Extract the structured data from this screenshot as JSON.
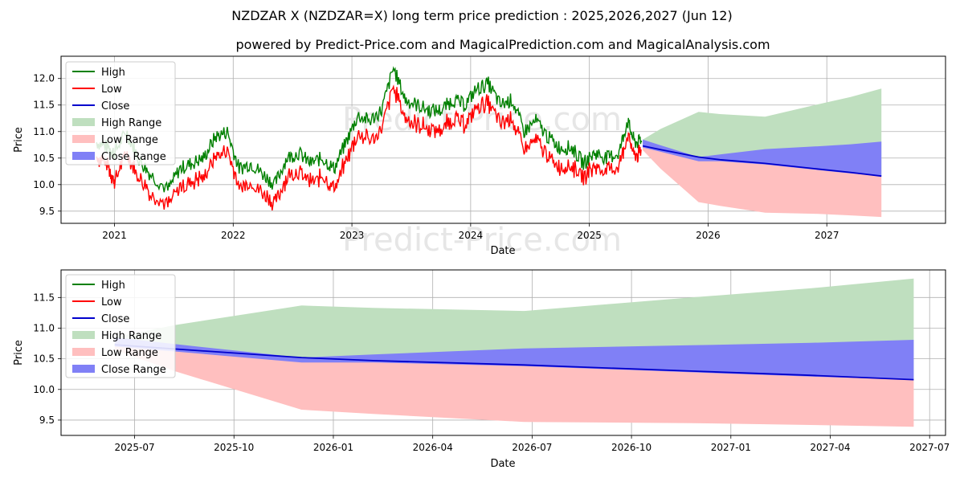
{
  "title": "NZDZAR X (NZDZAR=X) long term price prediction : 2025,2026,2027 (Jun 12)",
  "subtitle": "powered by Predict-Price.com and MagicalPrediction.com and MagicalAnalysis.com",
  "watermark": "Predict-Price.com",
  "colors": {
    "high": "#008000",
    "low": "#ff0000",
    "close": "#0000cc",
    "high_range": "#bfdfbf",
    "low_range": "#ffbfbf",
    "close_range": "#8080f6"
  },
  "legend": [
    "High",
    "Low",
    "Close",
    "High Range",
    "Low Range",
    "Close Range"
  ],
  "chart_data": [
    {
      "type": "line",
      "xlabel": "Date",
      "ylabel": "Price",
      "xlim": [
        2020.55,
        2028.0
      ],
      "ylim": [
        9.27,
        12.42
      ],
      "xticks": [
        2021,
        2022,
        2023,
        2024,
        2025,
        2026,
        2027
      ],
      "xtick_labels": [
        "2021",
        "2022",
        "2023",
        "2024",
        "2025",
        "2026",
        "2027"
      ],
      "yticks": [
        9.5,
        10.0,
        10.5,
        11.0,
        11.5,
        12.0
      ],
      "ytick_labels": [
        "9.5",
        "10.0",
        "10.5",
        "11.0",
        "11.5",
        "12.0"
      ],
      "history": {
        "x": [
          2020.85,
          2020.95,
          2021.0,
          2021.1,
          2021.2,
          2021.3,
          2021.45,
          2021.55,
          2021.65,
          2021.75,
          2021.85,
          2021.95,
          2022.05,
          2022.15,
          2022.25,
          2022.35,
          2022.45,
          2022.55,
          2022.65,
          2022.75,
          2022.85,
          2022.95,
          2023.05,
          2023.15,
          2023.25,
          2023.35,
          2023.45,
          2023.55,
          2023.65,
          2023.75,
          2023.85,
          2023.95,
          2024.05,
          2024.15,
          2024.25,
          2024.35,
          2024.45,
          2024.55,
          2024.65,
          2024.75,
          2024.85,
          2024.95,
          2025.05,
          2025.15,
          2025.25,
          2025.32,
          2025.38,
          2025.44
        ],
        "high": [
          10.8,
          10.7,
          10.6,
          11.0,
          10.5,
          10.2,
          9.9,
          10.3,
          10.4,
          10.5,
          10.9,
          11.0,
          10.3,
          10.4,
          10.2,
          10.0,
          10.5,
          10.6,
          10.4,
          10.5,
          10.3,
          10.8,
          11.3,
          11.2,
          11.4,
          12.2,
          11.6,
          11.5,
          11.4,
          11.4,
          11.6,
          11.5,
          11.8,
          11.9,
          11.5,
          11.6,
          11.0,
          11.2,
          10.9,
          10.7,
          10.7,
          10.4,
          10.6,
          10.5,
          10.6,
          11.2,
          10.8,
          10.8
        ],
        "low": [
          10.6,
          10.4,
          10.1,
          10.7,
          10.2,
          9.9,
          9.7,
          10.0,
          10.1,
          10.2,
          10.6,
          10.7,
          10.0,
          10.1,
          9.9,
          9.7,
          10.2,
          10.3,
          10.1,
          10.2,
          10.0,
          10.5,
          11.0,
          10.9,
          11.1,
          11.9,
          11.3,
          11.2,
          11.1,
          11.1,
          11.3,
          11.2,
          11.5,
          11.6,
          11.2,
          11.3,
          10.7,
          10.9,
          10.6,
          10.4,
          10.4,
          10.2,
          10.4,
          10.3,
          10.4,
          11.0,
          10.6,
          10.65
        ]
      },
      "forecast": {
        "x": [
          2025.45,
          2025.6,
          2025.92,
          2026.1,
          2026.48,
          2026.9,
          2027.2,
          2027.46
        ],
        "close": [
          10.73,
          10.66,
          10.52,
          10.47,
          10.4,
          10.3,
          10.23,
          10.16
        ],
        "close_range_upper": [
          10.85,
          10.74,
          10.52,
          10.57,
          10.67,
          10.72,
          10.76,
          10.81
        ],
        "close_range_lower": [
          10.7,
          10.62,
          10.44,
          10.44,
          10.38,
          10.28,
          10.21,
          10.16
        ],
        "high_range_upper": [
          10.85,
          11.05,
          11.37,
          11.33,
          11.28,
          11.5,
          11.65,
          11.81
        ],
        "low_range_lower": [
          10.65,
          10.3,
          9.67,
          9.6,
          9.47,
          9.45,
          9.42,
          9.39
        ]
      }
    },
    {
      "type": "line",
      "xlabel": "Date",
      "ylabel": "Price",
      "xlim": [
        2025.315,
        2027.54
      ],
      "ylim": [
        9.25,
        11.95
      ],
      "xticks": [
        2025.5,
        2025.75,
        2026.0,
        2026.25,
        2026.5,
        2026.75,
        2027.0,
        2027.25,
        2027.5
      ],
      "xtick_labels": [
        "2025-07",
        "2025-10",
        "2026-01",
        "2026-04",
        "2026-07",
        "2026-10",
        "2027-01",
        "2027-04",
        "2027-07"
      ],
      "yticks": [
        9.5,
        10.0,
        10.5,
        11.0,
        11.5
      ],
      "ytick_labels": [
        "9.5",
        "10.0",
        "10.5",
        "11.0",
        "11.5"
      ]
    }
  ]
}
